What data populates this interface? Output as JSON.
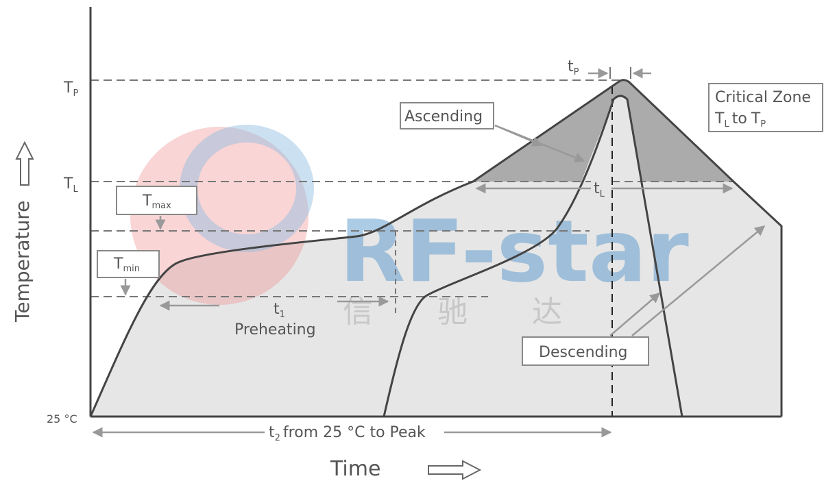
{
  "axes": {
    "y_label": "Temperature",
    "x_label": "Time"
  },
  "levels": {
    "tp": {
      "main": "T",
      "sub": "P"
    },
    "tl": {
      "main": "T",
      "sub": "L"
    },
    "tmax": {
      "main": "T",
      "sub": "max"
    },
    "tmin": {
      "main": "T",
      "sub": "min"
    },
    "base": "25 °C"
  },
  "times": {
    "tp": {
      "main": "t",
      "sub": "P"
    },
    "tl": {
      "main": "t",
      "sub": "L"
    },
    "t1": {
      "main": "t",
      "sub": "1",
      "caption": "Preheating"
    },
    "t2": {
      "main": "t",
      "sub": "2",
      "caption": "from 25 °C to Peak"
    }
  },
  "callouts": {
    "ascending": "Ascending",
    "descending": "Descending",
    "critical_zone": {
      "title": "Critical Zone",
      "range": {
        "from_main": "T",
        "from_sub": "L",
        "middle": "to",
        "to_main": "T",
        "to_sub": "P"
      }
    }
  },
  "watermark": {
    "brand": "RF-star",
    "chinese": "信 驰 达"
  }
}
